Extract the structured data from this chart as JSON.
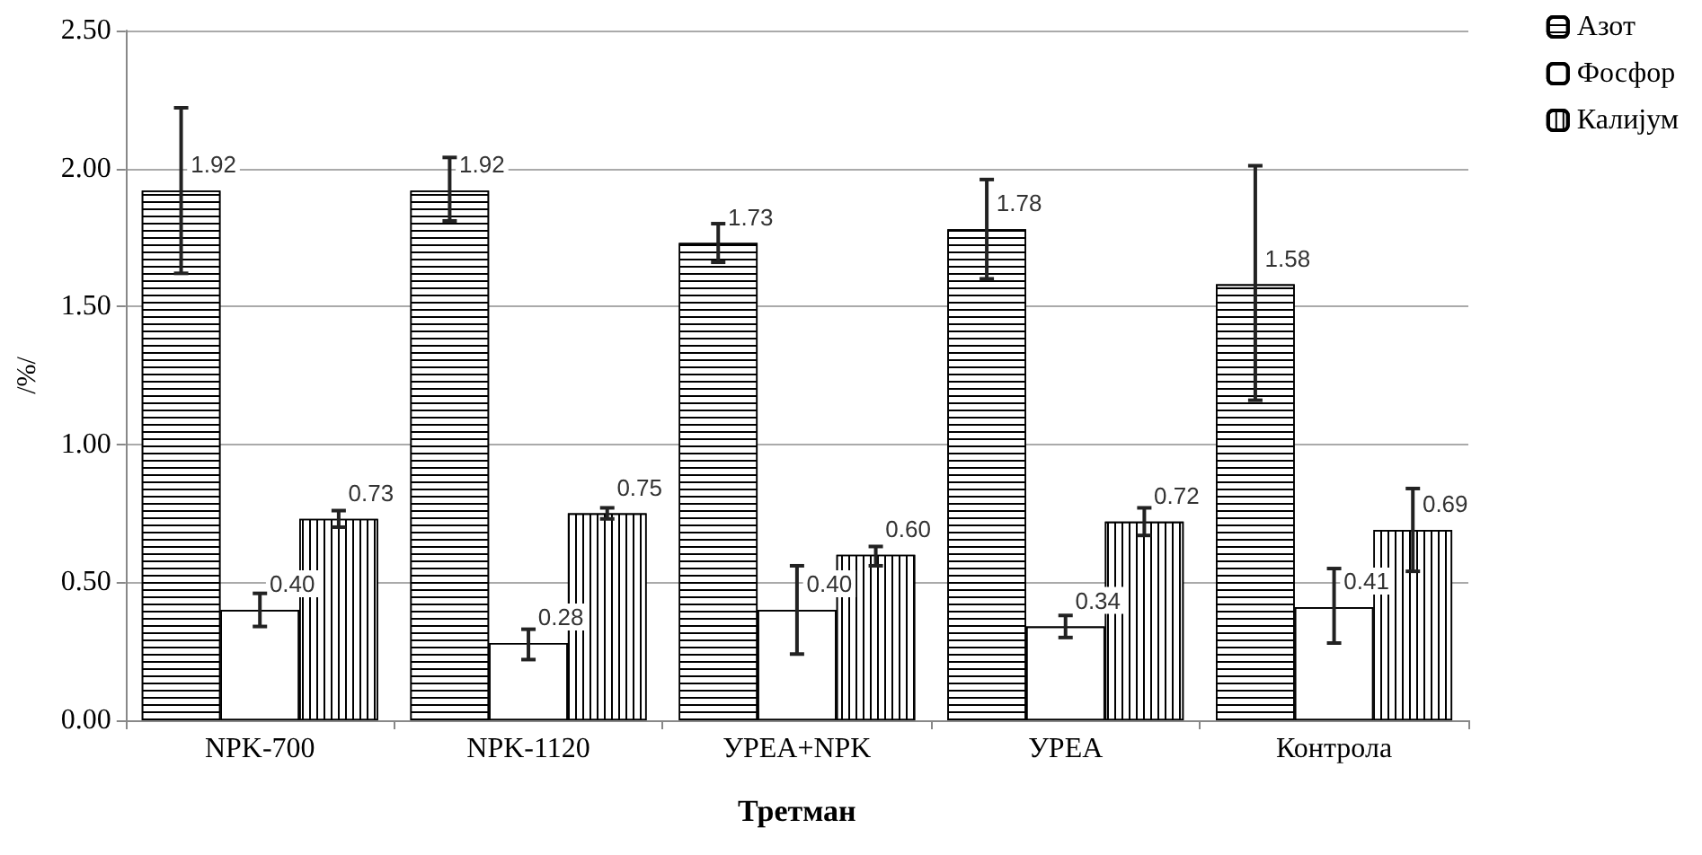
{
  "chart_data": {
    "type": "bar",
    "xlabel": "Третман",
    "ylabel": "/%/",
    "categories": [
      "NPK-700",
      "NPK-1120",
      "УРЕА+NPK",
      "УРЕА",
      "Контрола"
    ],
    "series": [
      {
        "name": "Азот",
        "color": "#ffffff",
        "values": [
          1.92,
          1.92,
          1.73,
          1.78,
          1.58
        ],
        "value_labels": [
          "1.92",
          "1.92",
          "1.73",
          "1.78",
          "1.58"
        ],
        "errors": [
          [
            1.62,
            2.22
          ],
          [
            1.81,
            2.04
          ],
          [
            1.66,
            1.8
          ],
          [
            1.6,
            1.96
          ],
          [
            1.16,
            2.01
          ]
        ]
      },
      {
        "name": "Фосфор",
        "color": "#ffffff",
        "values": [
          0.4,
          0.28,
          0.4,
          0.34,
          0.41
        ],
        "value_labels": [
          "0.40",
          "0.28",
          "0.40",
          "0.34",
          "0.41"
        ],
        "errors": [
          [
            0.34,
            0.46
          ],
          [
            0.22,
            0.33
          ],
          [
            0.24,
            0.56
          ],
          [
            0.3,
            0.38
          ],
          [
            0.28,
            0.55
          ]
        ]
      },
      {
        "name": "Калијум",
        "color": "#ffffff",
        "values": [
          0.73,
          0.75,
          0.6,
          0.72,
          0.69
        ],
        "value_labels": [
          "0.73",
          "0.75",
          "0.60",
          "0.72",
          "0.69"
        ],
        "errors": [
          [
            0.7,
            0.76
          ],
          [
            0.73,
            0.77
          ],
          [
            0.56,
            0.63
          ],
          [
            0.67,
            0.77
          ],
          [
            0.54,
            0.84
          ]
        ]
      }
    ],
    "ylim": [
      0,
      2.5
    ],
    "yticks": [
      {
        "value": 0,
        "label": "0.00"
      },
      {
        "value": 0.5,
        "label": "0.50"
      },
      {
        "value": 1,
        "label": "1.00"
      },
      {
        "value": 1.5,
        "label": "1.50"
      },
      {
        "value": 2,
        "label": "2.00"
      },
      {
        "value": 2.5,
        "label": "2.50"
      }
    ],
    "grid": "y",
    "legend": "right"
  }
}
